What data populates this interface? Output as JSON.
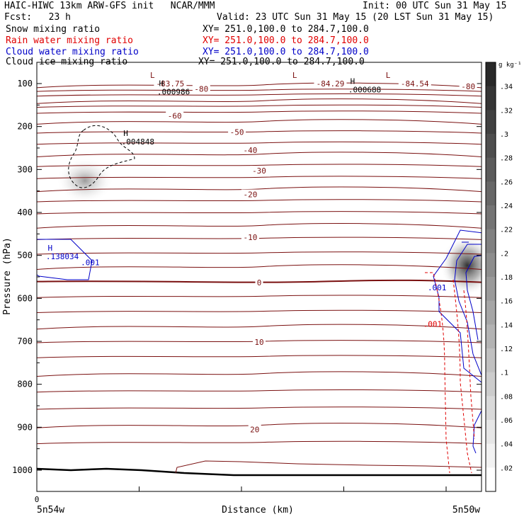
{
  "header": {
    "title_left": "HAIC-HIWC 13km ARW-GFS init   NCAR/MMM",
    "init": "Init: 00 UTC Sun 31 May 15",
    "fcst": "Fcst:   23 h",
    "valid": "Valid: 23 UTC Sun 31 May 15 (20 LST Sun 31 May 15)"
  },
  "legend": [
    {
      "name": "Snow mixing ratio",
      "xy": "XY= 251.0,100.0 to 284.7,100.0",
      "color": "#000000"
    },
    {
      "name": "Rain water mixing ratio",
      "xy": "XY= 251.0,100.0 to 284.7,100.0",
      "color": "#e00000"
    },
    {
      "name": "Cloud water mixing ratio",
      "xy": "XY= 251.0,100.0 to 284.7,100.0",
      "color": "#0000c8"
    },
    {
      "name": "Cloud ice mixing ratio",
      "xy": "XY= 251.0,100.0 to 284.7,100.0",
      "color": "#000000"
    }
  ],
  "colors": {
    "temperature": "#7a1010",
    "rain": "#e00000",
    "cloud_water": "#0000c8"
  },
  "chart_data": {
    "type": "contour",
    "ylabel": "Pressure (hPa)",
    "xlabel": "Distance (km)",
    "y_ticks": [
      100,
      200,
      300,
      400,
      500,
      600,
      700,
      800,
      900,
      1000
    ],
    "ylim": [
      1050,
      50
    ],
    "x_tick_zero": "0",
    "x_left_label": "5n54w",
    "x_right_label": "5n50w",
    "isotherm_labels": [
      {
        "label": "-83.75",
        "p": 100,
        "x": 0.3
      },
      {
        "label": "-80",
        "p": 112,
        "x": 0.37
      },
      {
        "label": "-84.29",
        "p": 100,
        "x": 0.66
      },
      {
        "label": "-84.54",
        "p": 100,
        "x": 0.85
      },
      {
        "label": "-80",
        "p": 107,
        "x": 0.97
      },
      {
        "label": "-60",
        "p": 175,
        "x": 0.31
      },
      {
        "label": "-50",
        "p": 213,
        "x": 0.45
      },
      {
        "label": "-40",
        "p": 255,
        "x": 0.48
      },
      {
        "label": "-30",
        "p": 303,
        "x": 0.5
      },
      {
        "label": "-20",
        "p": 358,
        "x": 0.48
      },
      {
        "label": "-10",
        "p": 458,
        "x": 0.48
      },
      {
        "label": "0",
        "p": 563,
        "x": 0.5
      },
      {
        "label": "10",
        "p": 702,
        "x": 0.5
      },
      {
        "label": "20",
        "p": 905,
        "x": 0.49
      }
    ],
    "extrema": [
      {
        "letter": "L",
        "p": 87,
        "x": 0.26
      },
      {
        "letter": "L",
        "p": 87,
        "x": 0.58
      },
      {
        "letter": "L",
        "p": 87,
        "x": 0.79
      },
      {
        "letter": "H",
        "p": 106,
        "x": 0.28,
        "value": ".000986"
      },
      {
        "letter": "H",
        "p": 101,
        "x": 0.71,
        "value": ".000688"
      },
      {
        "letter": "H",
        "p": 222,
        "x": 0.2,
        "value": ".004848"
      },
      {
        "letter": "H",
        "p": 489,
        "x": 0.03,
        "value": ".138034"
      }
    ],
    "contour_labels": [
      {
        "label": ".001",
        "color": "cloud_water",
        "p": 523,
        "x": 0.12
      },
      {
        "label": ".001",
        "color": "cloud_water",
        "p": 581,
        "x": 0.9
      },
      {
        "label": ".001",
        "color": "rain",
        "p": 666,
        "x": 0.89
      }
    ],
    "colorbar": {
      "unit": "g kg⁻¹",
      "ticks": [
        ".34",
        ".32",
        ".3",
        ".28",
        ".26",
        ".24",
        ".22",
        ".2",
        ".18",
        ".16",
        ".14",
        ".12",
        ".1",
        ".08",
        ".06",
        ".04",
        ".02"
      ]
    }
  }
}
